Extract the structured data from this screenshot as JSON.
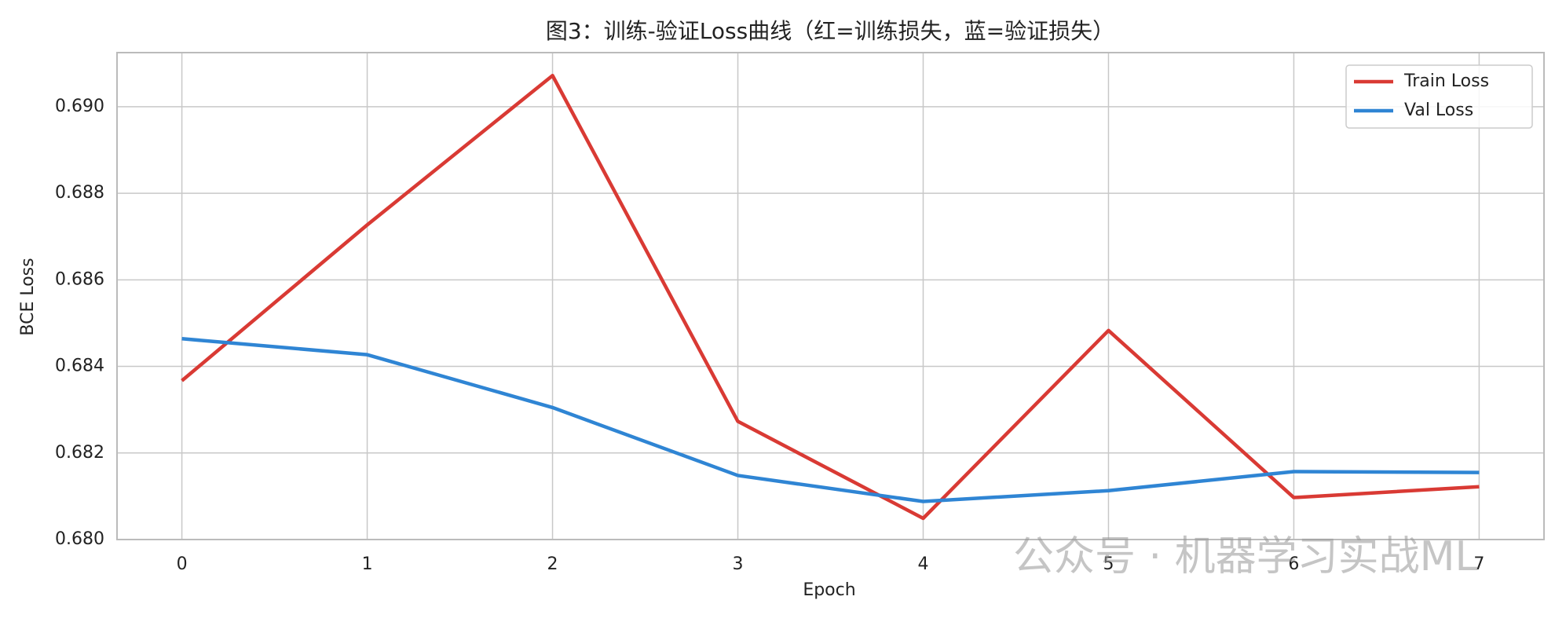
{
  "chart_data": {
    "type": "line",
    "title": "图3：训练-验证Loss曲线（红=训练损失，蓝=验证损失）",
    "x_label": "Epoch",
    "y_label": "BCE Loss",
    "x": [
      0,
      1,
      2,
      3,
      4,
      5,
      6,
      7
    ],
    "series": [
      {
        "name": "Train Loss",
        "color": "#d93a34",
        "values": [
          0.68367,
          0.68727,
          0.69072,
          0.68273,
          0.68049,
          0.68483,
          0.68097,
          0.68122
        ]
      },
      {
        "name": "Val Loss",
        "color": "#2f85d4",
        "values": [
          0.68464,
          0.68427,
          0.68305,
          0.68148,
          0.68088,
          0.68113,
          0.68157,
          0.68155
        ]
      }
    ],
    "xlim": [
      -0.35,
      7.35
    ],
    "ylim": [
      0.68,
      0.69125
    ],
    "xticks": [
      0,
      1,
      2,
      3,
      4,
      5,
      6,
      7
    ],
    "yticks": [
      {
        "value": 0.68,
        "label": "0.680"
      },
      {
        "value": 0.682,
        "label": "0.682"
      },
      {
        "value": 0.684,
        "label": "0.684"
      },
      {
        "value": 0.686,
        "label": "0.686"
      },
      {
        "value": 0.688,
        "label": "0.688"
      },
      {
        "value": 0.69,
        "label": "0.690"
      }
    ],
    "grid": true,
    "legend": "upper right",
    "watermark": "公众号 · 机器学习实战ML"
  }
}
